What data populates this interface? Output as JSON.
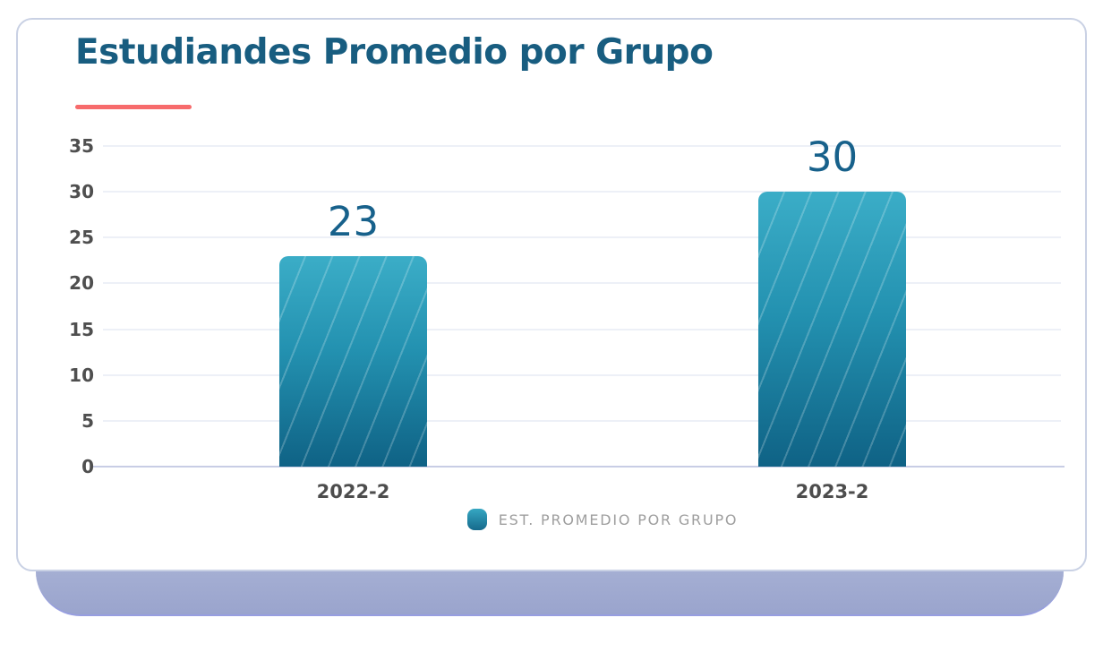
{
  "chart_data": {
    "type": "bar",
    "title": "Estudiandes Promedio por Grupo",
    "categories": [
      "2022-2",
      "2023-2"
    ],
    "series": [
      {
        "name": "EST. PROMEDIO POR GRUPO",
        "values": [
          23,
          30
        ]
      }
    ],
    "data_labels": [
      23,
      30
    ],
    "y_ticks": [
      0,
      5,
      10,
      15,
      20,
      25,
      30,
      35
    ],
    "ylim": [
      0,
      35
    ],
    "xlabel": "",
    "ylabel": "",
    "grid": true,
    "legend_position": "bottom"
  },
  "colors": {
    "title_text": "#185d80",
    "accent_underline": "#f76b6c",
    "bar_gradient_top": "#3badc7",
    "bar_gradient_bottom": "#0f6285",
    "bar_stripe": "rgba(255,255,255,0.22)",
    "value_label": "#17618b",
    "axis_tick_label": "#4f4f4f",
    "x_axis_label": "#4d4d4d",
    "legend_text": "#9e9e9e",
    "gridline": "#edf0f7",
    "baseline": "#c8cde5",
    "card_border": "#c9d1e4",
    "base_shadow": "#a6b0d4"
  }
}
